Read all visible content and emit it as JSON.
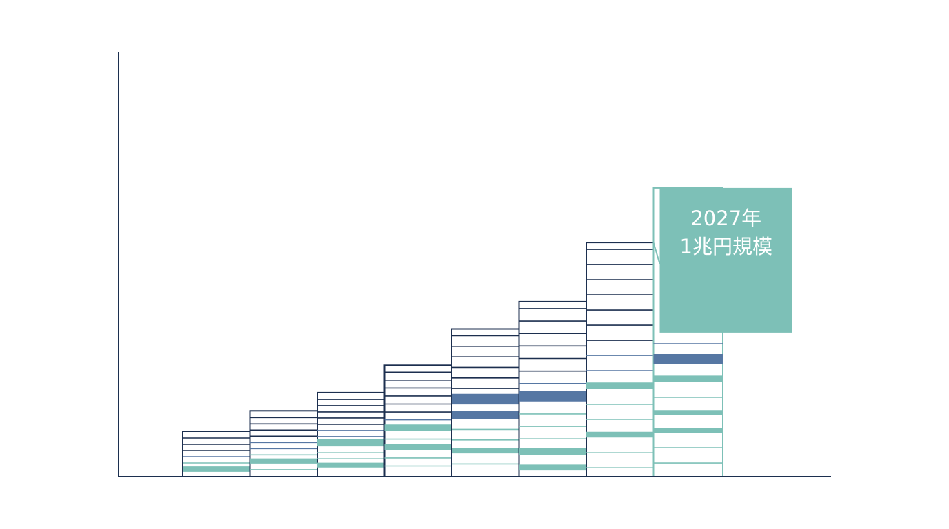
{
  "colors": {
    "navy": "#1c2f4f",
    "steel_blue": "#5677a3",
    "teal": "#7dc0b7",
    "background": "#ffffff"
  },
  "chart_data": {
    "type": "bar",
    "style": "stacked striped columns, rising staircase; no axis tick labels shown",
    "categories": [
      "",
      "",
      "",
      "",
      "",
      "",
      "",
      "2027年"
    ],
    "values": [
      10,
      14.5,
      18.5,
      24.5,
      32.5,
      38.5,
      51.5,
      63.5
    ],
    "grid": false,
    "legend": "none",
    "annotation": {
      "lines": [
        "2027年",
        "1兆円規模"
      ]
    }
  }
}
